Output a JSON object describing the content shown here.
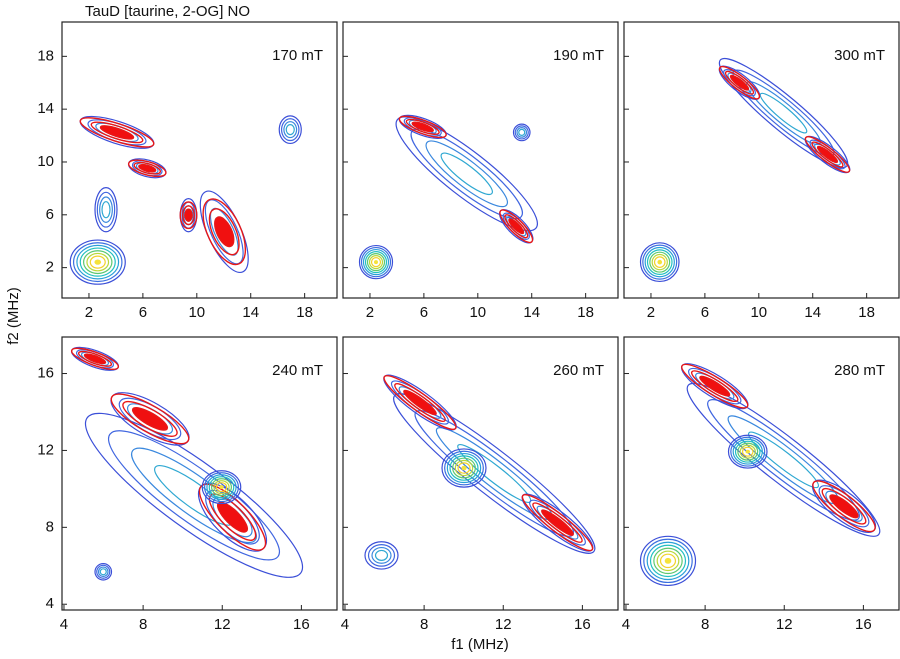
{
  "title": "TauD [taurine, 2-OG] NO",
  "x_label": "f1 (MHz)",
  "y_label": "f2 (MHz)",
  "chart_data": [
    {
      "type": "contour",
      "label": "170 mT",
      "xlim": [
        0,
        20.4
      ],
      "ylim": [
        -0.3,
        20.6
      ],
      "xticks": [
        2,
        6,
        10,
        14,
        18
      ],
      "yticks": [
        2,
        6,
        10,
        14,
        18
      ]
    },
    {
      "type": "contour",
      "label": "190 mT",
      "xlim": [
        0,
        20.4
      ],
      "ylim": [
        -0.3,
        20.6
      ],
      "xticks": [
        2,
        6,
        10,
        14,
        18
      ],
      "yticks": [
        2,
        6,
        10,
        14,
        18
      ]
    },
    {
      "type": "contour",
      "label": "300 mT",
      "xlim": [
        0,
        20.4
      ],
      "ylim": [
        -0.3,
        20.6
      ],
      "xticks": [
        2,
        6,
        10,
        14,
        18
      ],
      "yticks": [
        2,
        6,
        10,
        14,
        18
      ]
    },
    {
      "type": "contour",
      "label": "240 mT",
      "xlim": [
        3.9,
        17.8
      ],
      "ylim": [
        3.7,
        17.9
      ],
      "xticks": [
        4,
        8,
        12,
        16
      ],
      "yticks": [
        4,
        8,
        12,
        16
      ]
    },
    {
      "type": "contour",
      "label": "260 mT",
      "xlim": [
        3.9,
        17.8
      ],
      "ylim": [
        3.7,
        17.9
      ],
      "xticks": [
        4,
        8,
        12,
        16
      ],
      "yticks": [
        4,
        8,
        12,
        16
      ]
    },
    {
      "type": "contour",
      "label": "280 mT",
      "xlim": [
        3.9,
        17.8
      ],
      "ylim": [
        3.7,
        17.9
      ],
      "xticks": [
        4,
        8,
        12,
        16
      ],
      "yticks": [
        4,
        8,
        12,
        16
      ]
    }
  ]
}
